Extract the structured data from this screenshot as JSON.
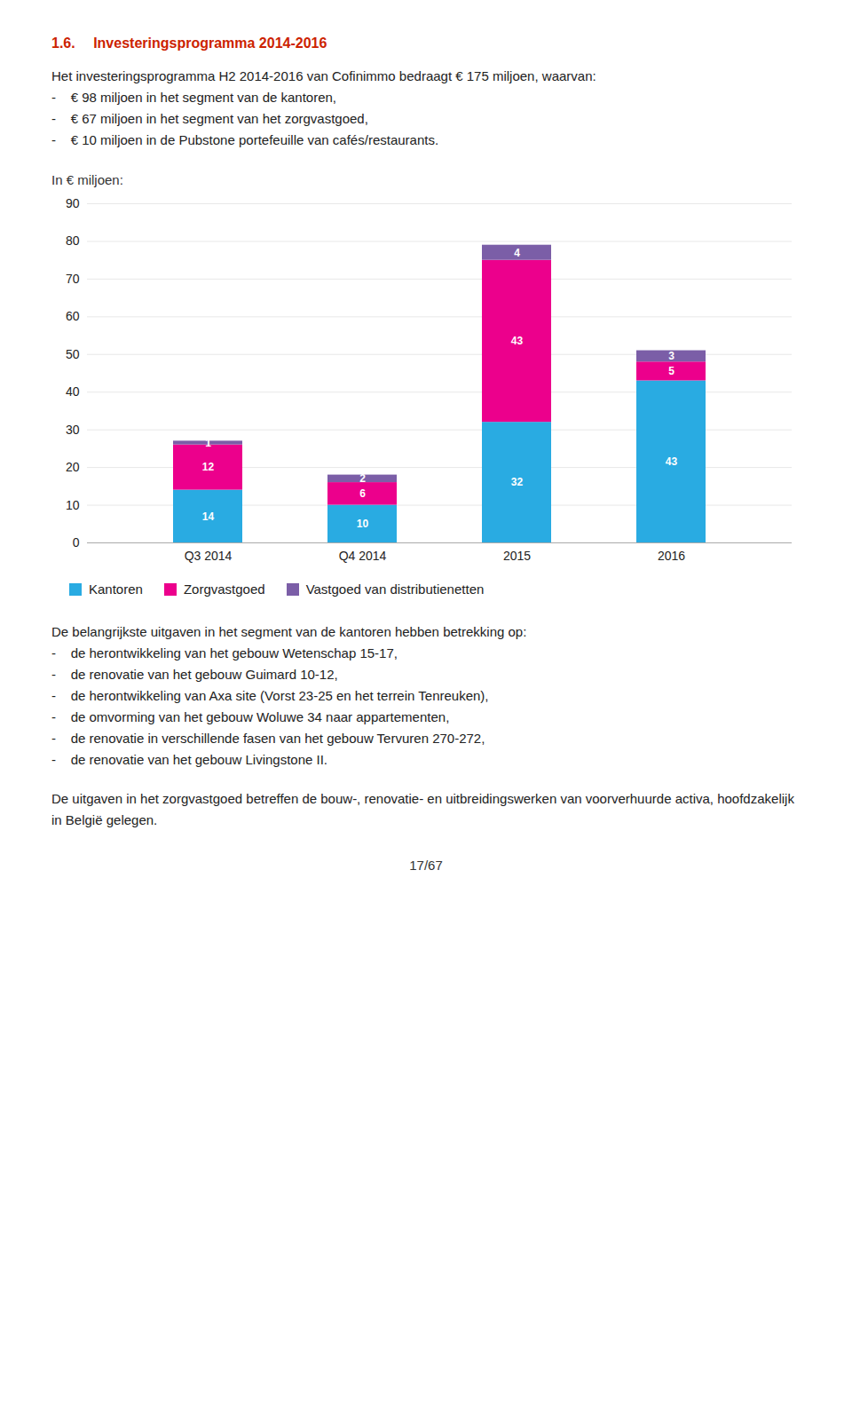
{
  "chart_data": {
    "type": "bar",
    "title": "1.6.  Investeringsprogramma 2014-2016",
    "subtitle": "Het investeringsprogramma H2 2014-2016 van Cofinimmo bedraagt € 175 miljoen, waarvan:\n-    € 98 miljoen in het segment van de kantoren,\n-    € 67 miljoen in het segment van het zorgvastgoed,\n-    € 10 miljoen in de Pubstone portefeuille van cafés/restaurants.",
    "ylabel": "In € miljoen:",
    "categories": [
      "Q3 2014",
      "Q4 2014",
      "2015",
      "2016"
    ],
    "series": [
      {
        "name": "Kantoren",
        "color": "#29ABE2",
        "values": [
          14,
          10,
          32,
          43
        ]
      },
      {
        "name": "Zorgvastgoed",
        "color": "#EC008C",
        "values": [
          12,
          6,
          43,
          5
        ]
      },
      {
        "name": "Vastgoed van distributienetten",
        "color": "#7B5EA7",
        "values": [
          1,
          2,
          4,
          3
        ]
      }
    ],
    "stacked": true,
    "data_labels": true,
    "ylim": [
      0,
      90
    ],
    "yticks": [
      0,
      10,
      20,
      30,
      40,
      50,
      60,
      70,
      80,
      90
    ],
    "grid": true,
    "legend": "bottom",
    "annotations": [
      "De belangrijkste uitgaven in het segment van de kantoren hebben betrekking op:\n-    de herontwikkeling van het gebouw Wetenschap 15-17,\n-    de renovatie van het gebouw Guimard 10-12,\n-    de herontwikkeling van Axa site (Vorst 23-25 en het terrein Tenreuken),\n-    de omvorming van het gebouw Woluwe 34 naar appartementen,\n-    de renovatie in verschillende fasen van het gebouw Tervuren 270-272,\n-    de renovatie van het gebouw Livingstone II.",
      "De uitgaven in het zorgvastgoed betreffen de bouw-, renovatie- en uitbreidingswerken van voorverhuurde activa, hoofdzakelijk in België gelegen.",
      "17/67"
    ]
  }
}
